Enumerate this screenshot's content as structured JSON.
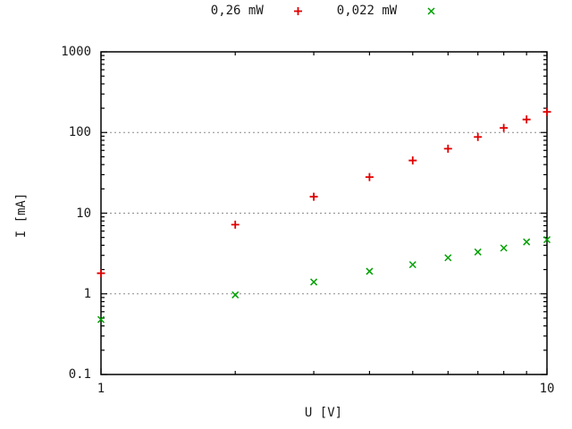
{
  "window": {
    "background": "#ffffff",
    "text_color": "#1a1a1a"
  },
  "legend": {
    "position": "top-center",
    "items": [
      {
        "label": "0,26 mW",
        "marker": "plus",
        "color": "#e00000"
      },
      {
        "label": "0,022 mW",
        "marker": "cross",
        "color": "#00a000"
      }
    ]
  },
  "chart_data": {
    "type": "scatter",
    "x_scale": "log",
    "y_scale": "log",
    "title": "",
    "xlabel": "U [V]",
    "ylabel": "I [mA]",
    "xlim": [
      1,
      10
    ],
    "ylim": [
      0.1,
      1000
    ],
    "x_tick_values": [
      1,
      10
    ],
    "x_tick_labels": [
      "1",
      "10"
    ],
    "y_tick_values": [
      1000,
      100,
      10,
      1,
      0.1
    ],
    "y_tick_labels": [
      "1000",
      "100",
      "10",
      "1",
      "0.1"
    ],
    "grid": "horizontal-dashed-at-major-y-ticks",
    "grid_color": "#8c8c8c",
    "axis_color": "#000000",
    "x": [
      1,
      2,
      3,
      4,
      5,
      6,
      7,
      8,
      9,
      10
    ],
    "series": [
      {
        "name": "0,26 mW",
        "marker": "plus",
        "color": "#e00000",
        "values": [
          1.8,
          7.2,
          16,
          28,
          45,
          63,
          88,
          114,
          145,
          180
        ]
      },
      {
        "name": "0,022 mW",
        "marker": "cross",
        "color": "#00a000",
        "values": [
          0.48,
          0.97,
          1.4,
          1.9,
          2.3,
          2.8,
          3.3,
          3.7,
          4.4,
          4.7
        ]
      }
    ]
  }
}
